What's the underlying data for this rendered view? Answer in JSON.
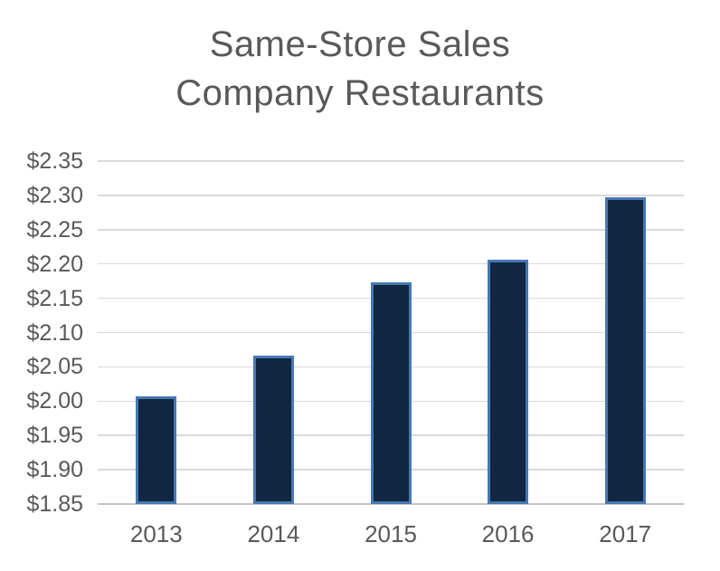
{
  "chart_data": {
    "type": "bar",
    "title": "Same-Store Sales",
    "subtitle": "Company Restaurants",
    "categories": [
      "2013",
      "2014",
      "2015",
      "2016",
      "2017"
    ],
    "values": [
      2.007,
      2.066,
      2.173,
      2.206,
      2.297
    ],
    "xlabel": "",
    "ylabel": "",
    "ylim": [
      1.85,
      2.35
    ],
    "y_ticks": [
      {
        "label": "$1.85",
        "value": 1.85
      },
      {
        "label": "$1.90",
        "value": 1.9
      },
      {
        "label": "$1.95",
        "value": 1.95
      },
      {
        "label": "$2.00",
        "value": 2.0
      },
      {
        "label": "$2.05",
        "value": 2.05
      },
      {
        "label": "$2.10",
        "value": 2.1
      },
      {
        "label": "$2.15",
        "value": 2.15
      },
      {
        "label": "$2.20",
        "value": 2.2
      },
      {
        "label": "$2.25",
        "value": 2.25
      },
      {
        "label": "$2.30",
        "value": 2.3
      },
      {
        "label": "$2.35",
        "value": 2.35
      }
    ],
    "grid": true,
    "legend": false,
    "colors": {
      "bar_fill": "#112640",
      "bar_border": "#4678b4",
      "text": "#595959",
      "gridline": "#d9d9d9",
      "axis_line": "#c4c4c4",
      "background": "#ffffff"
    }
  }
}
